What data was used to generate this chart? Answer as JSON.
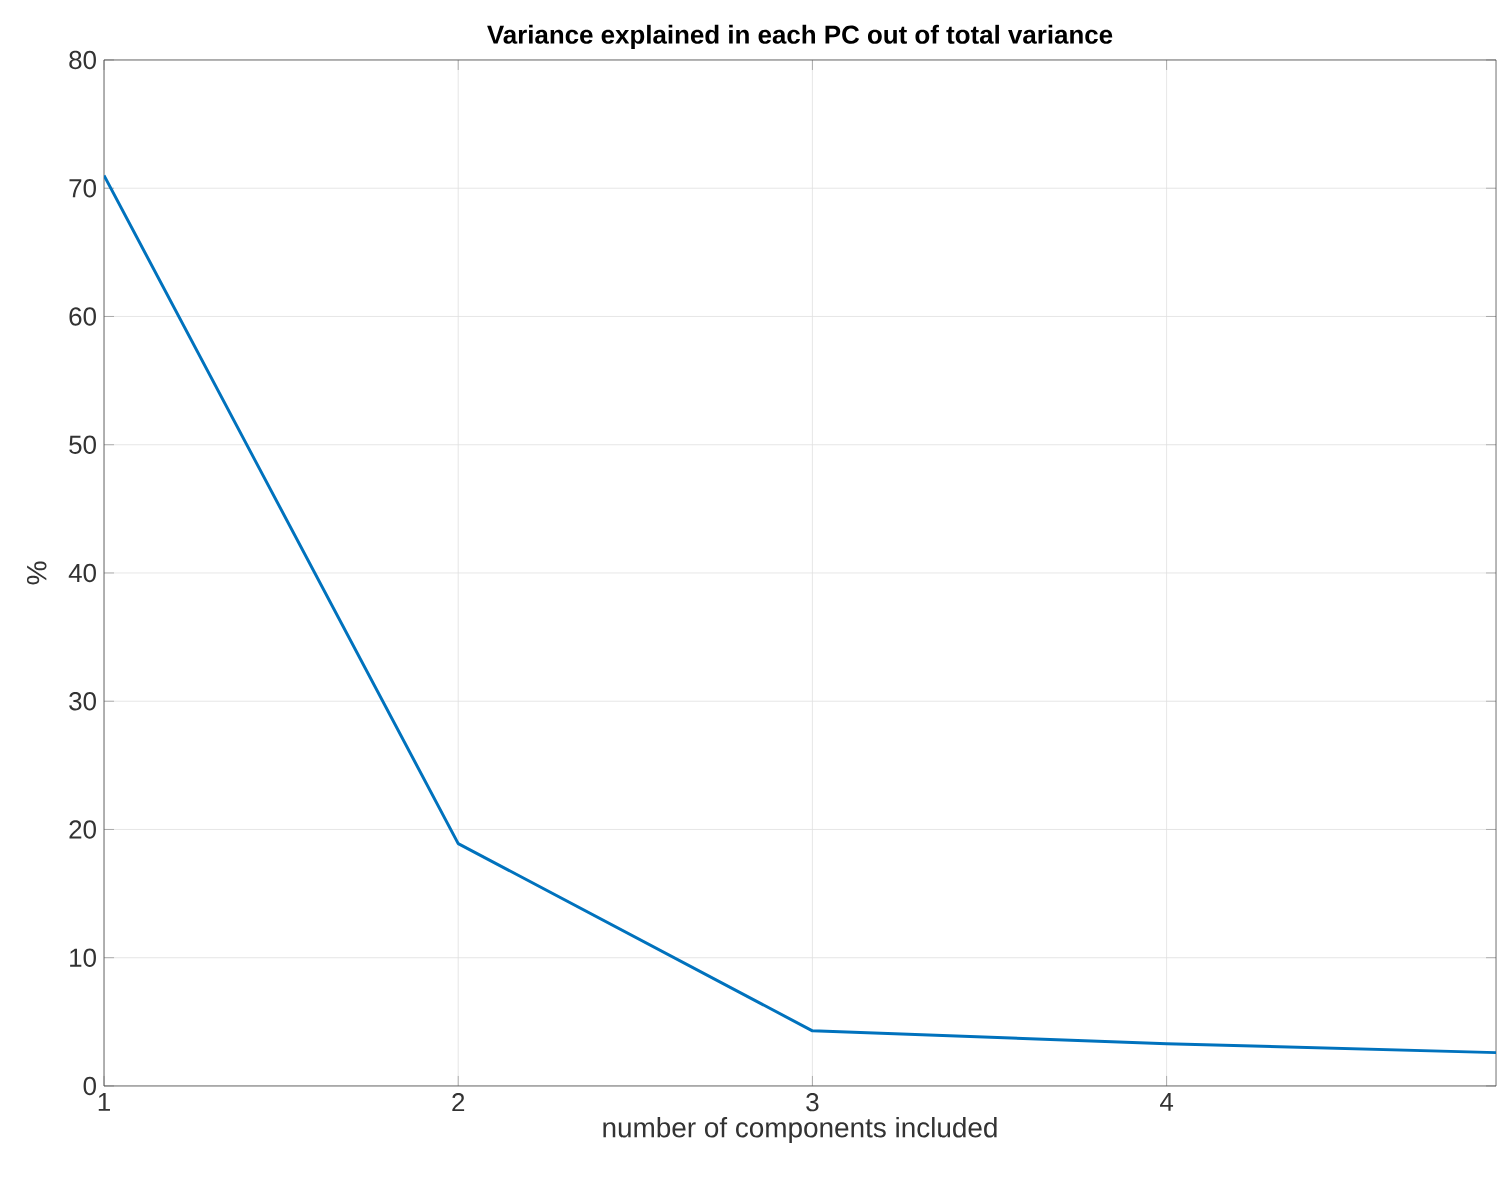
{
  "chart_data": {
    "type": "line",
    "title": "**Variance explained in each PC out of total variance**",
    "xlabel": "number of components included",
    "ylabel": "%",
    "x": [
      1,
      2,
      3,
      4,
      4.93
    ],
    "series": [
      {
        "color": "#0072bd",
        "values": [
          71.0,
          18.9,
          4.3,
          3.3,
          2.6
        ]
      }
    ],
    "xlim": [
      1,
      4.93
    ],
    "xticks": [
      1,
      2,
      3,
      4
    ],
    "ylim": [
      0,
      80
    ],
    "yticks": [
      0,
      10,
      20,
      30,
      40,
      50,
      60,
      70,
      80
    ],
    "grid": true,
    "marker": "none",
    "line_style": "solid"
  }
}
